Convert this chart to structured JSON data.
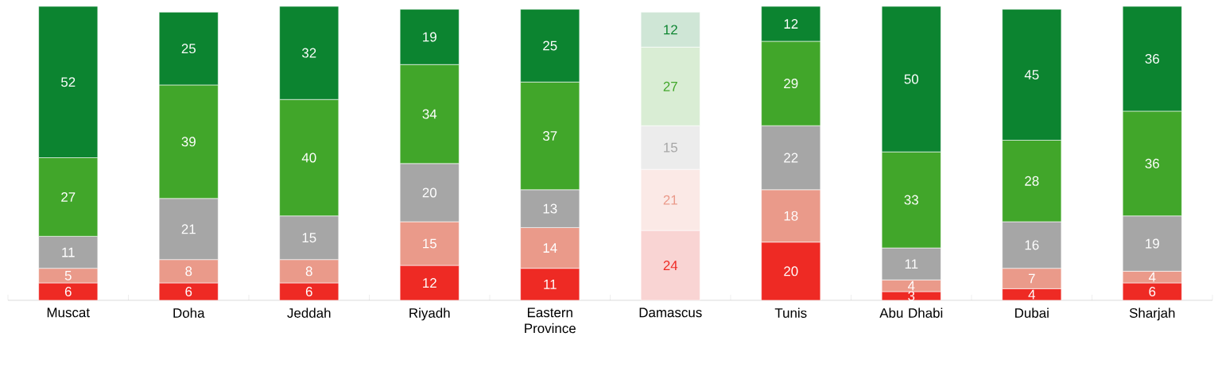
{
  "chart_data": {
    "type": "bar",
    "stacked": true,
    "data_labels": true,
    "tick_labels": "x",
    "categories": [
      "Muscat",
      "Doha",
      "Jeddah",
      "Riyadh",
      "Eastern Province",
      "Damascus",
      "Tunis",
      "Abu Dhabi",
      "Dubai",
      "Sharjah"
    ],
    "series": [
      {
        "color": "#ee2a24",
        "colors": [
          "#ee2a24",
          "#ee2a24",
          "#ee2a24",
          "#ee2a24",
          "#ee2a24",
          "#f9d4d3",
          "#ee2a24",
          "#ee2a24",
          "#ee2a24",
          "#ee2a24"
        ],
        "values": [
          6,
          6,
          6,
          12,
          11,
          24,
          20,
          3,
          4,
          6
        ]
      },
      {
        "color": "#ea9a8a",
        "colors": [
          "#ea9a8a",
          "#ea9a8a",
          "#ea9a8a",
          "#ea9a8a",
          "#ea9a8a",
          "#fbe9e6",
          "#ea9a8a",
          "#ea9a8a",
          "#ea9a8a",
          "#ea9a8a"
        ],
        "values": [
          5,
          8,
          8,
          15,
          14,
          21,
          18,
          4,
          7,
          4
        ]
      },
      {
        "color": "#a6a6a6",
        "colors": [
          "#a6a6a6",
          "#a6a6a6",
          "#a6a6a6",
          "#a6a6a6",
          "#a6a6a6",
          "#ececec",
          "#a6a6a6",
          "#a6a6a6",
          "#a6a6a6",
          "#a6a6a6"
        ],
        "values": [
          11,
          21,
          15,
          20,
          13,
          15,
          22,
          11,
          16,
          19
        ]
      },
      {
        "color": "#41a62a",
        "colors": [
          "#41a62a",
          "#41a62a",
          "#41a62a",
          "#41a62a",
          "#41a62a",
          "#d9edd4",
          "#41a62a",
          "#41a62a",
          "#41a62a",
          "#41a62a"
        ],
        "values": [
          27,
          39,
          40,
          34,
          37,
          27,
          29,
          33,
          28,
          36
        ]
      },
      {
        "color": "#0c8430",
        "colors": [
          "#0c8430",
          "#0c8430",
          "#0c8430",
          "#0c8430",
          "#0c8430",
          "#cfe6d6",
          "#0c8430",
          "#0c8430",
          "#0c8430",
          "#0c8430"
        ],
        "values": [
          52,
          25,
          32,
          19,
          25,
          12,
          12,
          50,
          45,
          36
        ]
      }
    ]
  }
}
